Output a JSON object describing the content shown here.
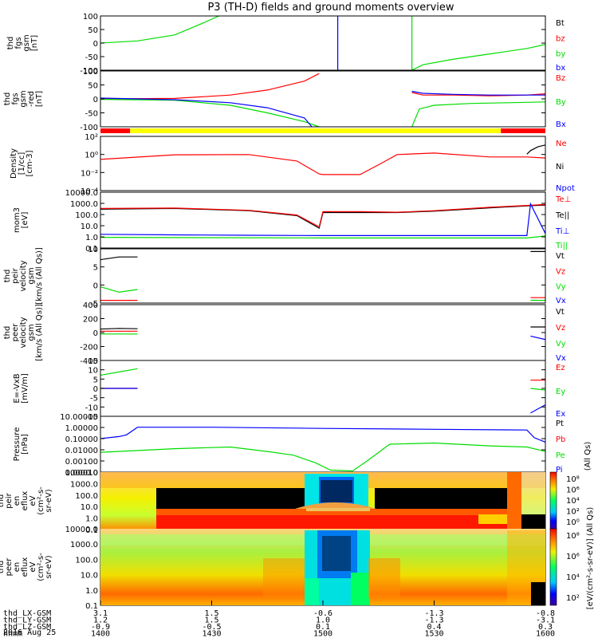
{
  "title": "P3 (TH-D) fields and ground moments overview",
  "colors": {
    "black": "#000000",
    "red": "#ff0000",
    "green": "#00dd00",
    "blue": "#0000ff",
    "yellow": "#ffff00"
  },
  "mode_bar": [
    {
      "start": "1400",
      "end": "1408",
      "color": "red"
    },
    {
      "start": "1408",
      "end": "1548",
      "color": "yellow"
    },
    {
      "start": "1548",
      "end": "1600",
      "color": "red"
    }
  ],
  "chart_data": [
    {
      "type": "line",
      "id": "fgs",
      "ylabel": [
        "thd",
        "fgs",
        "gsm",
        "[nT]"
      ],
      "yticks": [
        "100",
        "50",
        "0",
        "-50",
        "-100"
      ],
      "ylim": [
        -100,
        100
      ],
      "legend": [
        {
          "name": "Bt",
          "color": "black"
        },
        {
          "name": "bz",
          "color": "red"
        },
        {
          "name": "by",
          "color": "green"
        },
        {
          "name": "bx",
          "color": "blue"
        }
      ],
      "series": [
        {
          "name": "by",
          "color": "green",
          "x": [
            "1400",
            "1410",
            "1420",
            "1427",
            "1432"
          ],
          "values": [
            0,
            8,
            30,
            70,
            100
          ]
        },
        {
          "name": "bx",
          "color": "blue",
          "x": [
            "1504",
            "1504"
          ],
          "values": [
            100,
            -100
          ]
        },
        {
          "name": "by",
          "color": "green",
          "x": [
            "1524",
            "1524",
            "1527",
            "1535",
            "1545",
            "1555",
            "1600"
          ],
          "values": [
            100,
            -100,
            -80,
            -60,
            -40,
            -20,
            -5
          ]
        }
      ]
    },
    {
      "type": "line",
      "id": "fgs-dsl",
      "ylabel": [
        "thd",
        "fgs",
        "gsm",
        "-red",
        "[nT]"
      ],
      "yticks": [
        "100",
        "50",
        "0",
        "-50",
        "-100"
      ],
      "ylim": [
        -110,
        110
      ],
      "legend": [
        {
          "name": "Bz",
          "color": "red"
        },
        {
          "name": "By",
          "color": "green"
        },
        {
          "name": "Bx",
          "color": "blue"
        }
      ],
      "series": [
        {
          "name": "Bz",
          "color": "red",
          "x": [
            "1400",
            "1420",
            "1435",
            "1445",
            "1455",
            "1459"
          ],
          "values": [
            0,
            2,
            15,
            35,
            70,
            100
          ]
        },
        {
          "name": "By",
          "color": "green",
          "x": [
            "1400",
            "1420",
            "1435",
            "1445",
            "1455",
            "1459"
          ],
          "values": [
            -2,
            -5,
            -25,
            -55,
            -90,
            -110
          ]
        },
        {
          "name": "Bx",
          "color": "blue",
          "x": [
            "1400",
            "1420",
            "1435",
            "1445",
            "1455",
            "1457"
          ],
          "values": [
            3,
            -3,
            -15,
            -35,
            -75,
            -110
          ]
        },
        {
          "name": "Bz",
          "color": "red",
          "x": [
            "1524",
            "1527",
            "1535",
            "1545",
            "1555",
            "1600"
          ],
          "values": [
            25,
            15,
            15,
            12,
            15,
            20
          ]
        },
        {
          "name": "Bx",
          "color": "blue",
          "x": [
            "1524",
            "1527",
            "1535",
            "1545",
            "1555",
            "1600"
          ],
          "values": [
            30,
            22,
            18,
            15,
            15,
            15
          ]
        },
        {
          "name": "By",
          "color": "green",
          "x": [
            "1524",
            "1526",
            "1530",
            "1540",
            "1550",
            "1600"
          ],
          "values": [
            -110,
            -40,
            -25,
            -18,
            -15,
            -12
          ]
        }
      ]
    },
    {
      "type": "line",
      "id": "density",
      "yscale": "log",
      "ylabel": [
        "Density",
        "[1/cc]",
        "[cm-3]"
      ],
      "yticks": [
        "10²",
        "10⁰",
        "10⁻²",
        "10⁻⁴"
      ],
      "ylim": [
        5e-05,
        300
      ],
      "legend": [
        {
          "name": "Ne",
          "color": "red"
        },
        {
          "name": "Ni",
          "color": "black"
        },
        {
          "name": "Npot",
          "color": "blue"
        }
      ],
      "series": [
        {
          "name": "Ne",
          "color": "red",
          "x": [
            "1400",
            "1420",
            "1440",
            "1453",
            "1459",
            "1500",
            "1510",
            "1516",
            "1520",
            "1530",
            "1545",
            "1555",
            "1600"
          ],
          "values": [
            0.4,
            1.5,
            1.6,
            0.25,
            0.006,
            0.005,
            0.005,
            0.15,
            1.6,
            2.5,
            0.8,
            0.8,
            0.6
          ]
        },
        {
          "name": "Ni",
          "color": "black",
          "x": [
            "1555",
            "1556",
            "1558",
            "1600"
          ],
          "values": [
            1.8,
            5,
            15,
            25
          ]
        }
      ]
    },
    {
      "type": "line",
      "id": "temperature",
      "yscale": "log",
      "ylabel": [
        "mom3",
        "[eV]"
      ],
      "yticks": [
        "10000.0",
        "1000.0",
        "100.0",
        "10.0",
        "1.0",
        "0.1"
      ],
      "ylim": [
        0.1,
        10000
      ],
      "legend": [
        {
          "name": "Te⊥",
          "color": "red"
        },
        {
          "name": "Te||",
          "color": "black"
        },
        {
          "name": "Ti⊥",
          "color": "blue"
        },
        {
          "name": "Ti||",
          "color": "green"
        }
      ],
      "series": [
        {
          "name": "Te||",
          "color": "black",
          "x": [
            "1400",
            "1420",
            "1440",
            "1453",
            "1459",
            "1500",
            "1510",
            "1520",
            "1530",
            "1545",
            "1555",
            "1600"
          ],
          "values": [
            300,
            350,
            220,
            80,
            6,
            150,
            150,
            150,
            200,
            400,
            600,
            700
          ]
        },
        {
          "name": "Te⊥",
          "color": "red",
          "x": [
            "1400",
            "1420",
            "1440",
            "1453",
            "1459",
            "1500",
            "1510",
            "1520",
            "1530",
            "1545",
            "1555",
            "1600"
          ],
          "values": [
            350,
            380,
            240,
            90,
            8,
            180,
            180,
            160,
            220,
            450,
            650,
            800
          ]
        },
        {
          "name": "Ti⊥",
          "color": "blue",
          "x": [
            "1400",
            "1420",
            "1440",
            "1500",
            "1520",
            "1540",
            "1555",
            "1556",
            "1600"
          ],
          "values": [
            1.7,
            1.5,
            1.4,
            1.3,
            1.3,
            1.3,
            1.3,
            900,
            2
          ]
        },
        {
          "name": "Ti||",
          "color": "green",
          "x": [
            "1400",
            "1500",
            "1555",
            "1600"
          ],
          "values": [
            0.9,
            0.8,
            0.8,
            1.2
          ]
        }
      ]
    },
    {
      "type": "line",
      "id": "peir-velocity",
      "ylabel": [
        "thd",
        "peir",
        "velocity",
        "gsm",
        "[km/s (All Qs)]"
      ],
      "yticks": [
        "10",
        "5",
        "0",
        "-5"
      ],
      "ylim": [
        -6,
        14
      ],
      "legend": [
        {
          "name": "Vt",
          "color": "black"
        },
        {
          "name": "Vz",
          "color": "red"
        },
        {
          "name": "Vy",
          "color": "green"
        },
        {
          "name": "Vx",
          "color": "blue"
        }
      ],
      "series": [
        {
          "name": "Vt",
          "color": "black",
          "x": [
            "1400",
            "1405",
            "1410"
          ],
          "values": [
            10,
            11,
            11
          ]
        },
        {
          "name": "Vy",
          "color": "green",
          "x": [
            "1400",
            "1405",
            "1410"
          ],
          "values": [
            0,
            -2,
            -1
          ]
        },
        {
          "name": "Vz",
          "color": "red",
          "x": [
            "1400",
            "1410"
          ],
          "values": [
            -5,
            -5
          ]
        },
        {
          "name": "Vt",
          "color": "black",
          "x": [
            "1556",
            "1600"
          ],
          "values": [
            13,
            13
          ]
        },
        {
          "name": "Vz",
          "color": "red",
          "x": [
            "1556",
            "1600"
          ],
          "values": [
            -4,
            -4
          ]
        },
        {
          "name": "Vy",
          "color": "green",
          "x": [
            "1556",
            "1600"
          ],
          "values": [
            -5,
            -5
          ]
        }
      ]
    },
    {
      "type": "line",
      "id": "peer-velocity",
      "ylabel": [
        "thd",
        "peer",
        "velocity",
        "gsm",
        "[km/s (All Qs)]"
      ],
      "yticks": [
        "400",
        "200",
        "0",
        "-200",
        "-400"
      ],
      "ylim": [
        -400,
        400
      ],
      "legend": [
        {
          "name": "Vt",
          "color": "black"
        },
        {
          "name": "Vz",
          "color": "red"
        },
        {
          "name": "Vy",
          "color": "green"
        },
        {
          "name": "Vx",
          "color": "blue"
        }
      ],
      "series": [
        {
          "name": "Vt",
          "color": "black",
          "x": [
            "1400",
            "1405",
            "1410"
          ],
          "values": [
            50,
            60,
            55
          ]
        },
        {
          "name": "Vz",
          "color": "red",
          "x": [
            "1400",
            "1410"
          ],
          "values": [
            20,
            20
          ]
        },
        {
          "name": "Vy",
          "color": "green",
          "x": [
            "1400",
            "1410"
          ],
          "values": [
            -20,
            -20
          ]
        },
        {
          "name": "Vt",
          "color": "black",
          "x": [
            "1556",
            "1600"
          ],
          "values": [
            80,
            80
          ]
        },
        {
          "name": "Vx",
          "color": "blue",
          "x": [
            "1556",
            "1600"
          ],
          "values": [
            -50,
            -100
          ]
        }
      ]
    },
    {
      "type": "line",
      "id": "efield",
      "ylabel": [
        "E=-VxB",
        "[mV/m]"
      ],
      "yticks": [
        "15",
        "10",
        "5",
        "0",
        "-5",
        "-10",
        "-15"
      ],
      "ylim": [
        -17,
        17
      ],
      "legend": [
        {
          "name": "Ez",
          "color": "red"
        },
        {
          "name": "Ey",
          "color": "green"
        },
        {
          "name": "Ex",
          "color": "blue"
        }
      ],
      "series": [
        {
          "name": "Ey",
          "color": "green",
          "x": [
            "1400",
            "1405",
            "1410"
          ],
          "values": [
            8,
            10,
            12
          ]
        },
        {
          "name": "Ez",
          "color": "red",
          "x": [
            "1400",
            "1410"
          ],
          "values": [
            0,
            0
          ]
        },
        {
          "name": "Ex",
          "color": "blue",
          "x": [
            "1400",
            "1410"
          ],
          "values": [
            0,
            0
          ]
        },
        {
          "name": "Ez",
          "color": "red",
          "x": [
            "1556",
            "1600"
          ],
          "values": [
            5,
            5
          ]
        },
        {
          "name": "Ey",
          "color": "green",
          "x": [
            "1556",
            "1600"
          ],
          "values": [
            0,
            -1
          ]
        },
        {
          "name": "Ex",
          "color": "blue",
          "x": [
            "1556",
            "1600"
          ],
          "values": [
            -15,
            -10
          ]
        }
      ]
    },
    {
      "type": "line",
      "id": "pressure",
      "yscale": "log",
      "ylabel": [
        "Pressure",
        "[nPa]"
      ],
      "yticks": [
        "10.00000",
        "1.00000",
        "0.10000",
        "0.01000",
        "0.00100",
        "0.00010"
      ],
      "ylim": [
        3e-05,
        30
      ],
      "legend": [
        {
          "name": "Pt",
          "color": "black"
        },
        {
          "name": "Pb",
          "color": "red"
        },
        {
          "name": "Pe",
          "color": "green"
        },
        {
          "name": "Pi",
          "color": "blue"
        }
      ],
      "extra_label": "(All Qs)",
      "series": [
        {
          "name": "Pi",
          "color": "blue",
          "x": [
            "1400",
            "1405",
            "1407",
            "1410",
            "1430",
            "1500",
            "1530",
            "1555",
            "1557",
            "1600"
          ],
          "values": [
            0.12,
            0.2,
            0.3,
            2,
            2,
            1.5,
            1.2,
            1,
            0.15,
            0.05
          ]
        },
        {
          "name": "Pe",
          "color": "green",
          "x": [
            "1400",
            "1420",
            "1435",
            "1445",
            "1452",
            "1458",
            "1502",
            "1508",
            "1512",
            "1518",
            "1530",
            "1545",
            "1555",
            "1600"
          ],
          "values": [
            0.004,
            0.01,
            0.015,
            0.005,
            0.002,
            0.0003,
            5e-05,
            4e-05,
            0.0005,
            0.03,
            0.04,
            0.02,
            0.015,
            0.005
          ]
        }
      ]
    },
    {
      "type": "heatmap",
      "id": "peir-spec",
      "ylabel": [
        "thd",
        "peir",
        "en",
        "eflux",
        "eV",
        "(cm²-s-",
        "sr-eV)"
      ],
      "yticks": [
        "10000.0",
        "1000.0",
        "100.0",
        "10.0",
        "1.0",
        "0.1"
      ]
    },
    {
      "type": "heatmap",
      "id": "peer-spec",
      "ylabel": [
        "thd",
        "peer",
        "en",
        "eflux",
        "eV",
        "(cm²-s-",
        "sr-eV)"
      ],
      "yticks": [
        "10000.0",
        "1000.0",
        "100.0",
        "10.0",
        "1.0",
        "0.1"
      ]
    }
  ],
  "colorbars": [
    {
      "id": "cb1",
      "ticks": [
        "10⁸",
        "10⁶",
        "10⁴",
        "10²",
        "10⁰"
      ]
    },
    {
      "id": "cb2",
      "ticks": [
        "10⁸",
        "10⁶",
        "10⁴",
        "10²"
      ]
    }
  ],
  "colorbar_label": "[eV/(cm²-s-sr-eV)] (All Qs)",
  "xaxis": {
    "rows": [
      {
        "label": "thd_LX-GSM",
        "values": [
          "3.1",
          "1.5",
          "-0.6",
          "-1.3",
          "-0.8"
        ]
      },
      {
        "label": "thd_LY-GSM",
        "values": [
          "1.2",
          "1.5",
          "1.0",
          "-1.3",
          "-3.1"
        ]
      },
      {
        "label": "thd_LZ-GSM",
        "values": [
          "-0.9",
          "-0.5",
          "0.1",
          "0.4",
          "0.3"
        ]
      },
      {
        "label": "hhmm",
        "values": [
          "1400",
          "1430",
          "1500",
          "1530",
          "1600"
        ]
      }
    ],
    "date": "2016 Aug 25"
  }
}
